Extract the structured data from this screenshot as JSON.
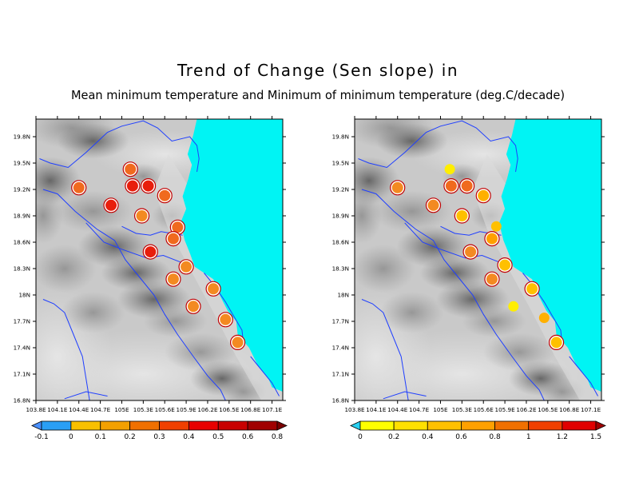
{
  "title": "Trend of Change (Sen slope) in",
  "subtitle": "Mean minimum temperature and Minimum of minimum temperature (deg.C/decade)",
  "colors": {
    "sea": "#00f4f4",
    "river": "#1f3fff",
    "station_outline": "#c00000"
  },
  "panels": [
    {
      "id": "left",
      "x_ticks": [
        "103.8E",
        "104.1E",
        "104.4E",
        "104.7E",
        "105E",
        "105.3E",
        "105.6E",
        "105.9E",
        "106.2E",
        "106.5E",
        "106.8E",
        "107.1E"
      ],
      "y_ticks": [
        "16.8N",
        "17.1N",
        "17.4N",
        "17.7N",
        "18N",
        "18.3N",
        "18.6N",
        "18.9N",
        "19.2N",
        "19.5N",
        "19.8N"
      ],
      "colorbar": {
        "labels": [
          "-0.1",
          "0",
          "0.1",
          "0.2",
          "0.3",
          "0.4",
          "0.5",
          "0.6",
          "0.8"
        ],
        "colors": [
          "#4a90ff",
          "#2a9ff5",
          "#f8c000",
          "#f3a000",
          "#f07000",
          "#f04000",
          "#e80000",
          "#c80000",
          "#a00000",
          "#7a0000"
        ]
      },
      "stations": [
        {
          "lon": 104.4,
          "lat": 19.22,
          "color": "#f06a1e"
        },
        {
          "lon": 104.85,
          "lat": 19.02,
          "color": "#e81e0c"
        },
        {
          "lon": 105.12,
          "lat": 19.43,
          "color": "#f06a1e"
        },
        {
          "lon": 105.15,
          "lat": 19.24,
          "color": "#e81e0c"
        },
        {
          "lon": 105.37,
          "lat": 19.24,
          "color": "#e81e0c"
        },
        {
          "lon": 105.6,
          "lat": 19.13,
          "color": "#f06a1e"
        },
        {
          "lon": 105.28,
          "lat": 18.9,
          "color": "#f38a22"
        },
        {
          "lon": 105.78,
          "lat": 18.77,
          "color": "#f06a1e"
        },
        {
          "lon": 105.72,
          "lat": 18.64,
          "color": "#f06a1e"
        },
        {
          "lon": 105.4,
          "lat": 18.49,
          "color": "#e81e0c"
        },
        {
          "lon": 105.9,
          "lat": 18.32,
          "color": "#f38a22"
        },
        {
          "lon": 105.72,
          "lat": 18.18,
          "color": "#f38a22"
        },
        {
          "lon": 106.28,
          "lat": 18.07,
          "color": "#f38a22"
        },
        {
          "lon": 106.0,
          "lat": 17.87,
          "color": "#f38a22"
        },
        {
          "lon": 106.45,
          "lat": 17.72,
          "color": "#f38a22"
        },
        {
          "lon": 106.62,
          "lat": 17.46,
          "color": "#f38a22"
        }
      ]
    },
    {
      "id": "right",
      "x_ticks": [
        "103.8E",
        "104.1E",
        "104.4E",
        "104.7E",
        "105E",
        "105.3E",
        "105.6E",
        "105.9E",
        "106.2E",
        "106.5E",
        "106.8E",
        "107.1E"
      ],
      "y_ticks": [
        "16.8N",
        "17.1N",
        "17.4N",
        "17.7N",
        "18N",
        "18.3N",
        "18.6N",
        "18.9N",
        "19.2N",
        "19.5N",
        "19.8N"
      ],
      "colorbar": {
        "labels": [
          "0",
          "0.2",
          "0.4",
          "0.6",
          "0.8",
          "1",
          "1.2",
          "1.5"
        ],
        "colors": [
          "#2ad0f0",
          "#ffff00",
          "#ffe000",
          "#ffc000",
          "#ffa000",
          "#f07000",
          "#f04000",
          "#e00000",
          "#a00000"
        ]
      },
      "stations": [
        {
          "lon": 104.4,
          "lat": 19.22,
          "color": "#f38a22"
        },
        {
          "lon": 104.9,
          "lat": 19.02,
          "color": "#f38a22"
        },
        {
          "lon": 105.13,
          "lat": 19.43,
          "color": "#ffee00",
          "plain": true
        },
        {
          "lon": 105.15,
          "lat": 19.24,
          "color": "#f06a1e"
        },
        {
          "lon": 105.37,
          "lat": 19.24,
          "color": "#f06a1e"
        },
        {
          "lon": 105.6,
          "lat": 19.13,
          "color": "#ffb000"
        },
        {
          "lon": 105.3,
          "lat": 18.9,
          "color": "#ffc000"
        },
        {
          "lon": 105.78,
          "lat": 18.78,
          "color": "#ffc000",
          "plain": true
        },
        {
          "lon": 105.72,
          "lat": 18.64,
          "color": "#ffa000"
        },
        {
          "lon": 105.42,
          "lat": 18.49,
          "color": "#f38a22"
        },
        {
          "lon": 105.9,
          "lat": 18.34,
          "color": "#ffc000"
        },
        {
          "lon": 105.72,
          "lat": 18.18,
          "color": "#f38a22"
        },
        {
          "lon": 106.28,
          "lat": 18.07,
          "color": "#ffc000"
        },
        {
          "lon": 106.02,
          "lat": 17.87,
          "color": "#ffee00",
          "plain": true
        },
        {
          "lon": 106.45,
          "lat": 17.74,
          "color": "#ffb000",
          "plain": true
        },
        {
          "lon": 106.62,
          "lat": 17.46,
          "color": "#ffc000"
        }
      ]
    }
  ]
}
